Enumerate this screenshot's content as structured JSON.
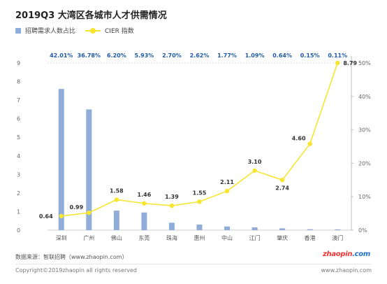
{
  "title": "2019Q3 大湾区各城市人才供需情况",
  "legend": [
    {
      "label": "招聘需求人数占比",
      "type": "bar",
      "color": "#8fadd8"
    },
    {
      "label": "CIER 指数",
      "type": "line",
      "color": "#f7e52f"
    }
  ],
  "chart_data": {
    "type": "bar",
    "categories": [
      "深圳",
      "广州",
      "佛山",
      "东莞",
      "珠海",
      "惠州",
      "中山",
      "江门",
      "肇庆",
      "香港",
      "澳门"
    ],
    "series": [
      {
        "name": "招聘需求人数占比",
        "type": "bar",
        "axis": "left",
        "color": "#8fadd8",
        "values": [
          7.6,
          6.5,
          1.05,
          0.95,
          0.4,
          0.3,
          0.2,
          0.15,
          0.1,
          0.05,
          0.04
        ],
        "labels": [
          "42.01%",
          "36.78%",
          "6.20%",
          "5.93%",
          "2.70%",
          "2.62%",
          "1.77%",
          "1.09%",
          "0.64%",
          "0.15%",
          "0.11%"
        ]
      },
      {
        "name": "CIER 指数",
        "type": "line",
        "axis": "right",
        "color": "#f7e52f",
        "values": [
          0.64,
          0.99,
          1.58,
          1.46,
          1.39,
          1.55,
          2.11,
          3.1,
          2.74,
          4.6,
          8.79
        ],
        "right_axis_values": [
          4.2,
          5.2,
          9.1,
          8.0,
          7.3,
          8.5,
          11.7,
          17.8,
          15.0,
          25.8,
          50.0
        ],
        "labels": [
          "0.64",
          "0.99",
          "1.58",
          "1.46",
          "1.39",
          "1.55",
          "2.11",
          "3.10",
          "2.74",
          "4.60",
          "8.79"
        ]
      }
    ],
    "yticks_left": [
      "0",
      "1",
      "2",
      "3",
      "4",
      "5",
      "6",
      "7",
      "8",
      "9"
    ],
    "ylim_left": [
      0,
      9
    ],
    "yticks_right": [
      "0%",
      "10%",
      "20%",
      "30%",
      "40%",
      "50%"
    ],
    "ylim_right": [
      0,
      50
    ],
    "colors": {
      "top_labels": "#1f5aa6",
      "axis_text": "#666666",
      "point_labels": "#333333"
    }
  },
  "source": "数据来源：智联招聘（www.zhaopin.com）",
  "copyright": "Copyright©2019zhaopin all rights reserved",
  "website": "www.zhaopin.com",
  "logo": {
    "main": "zhaopin",
    "suffix": ".com"
  }
}
